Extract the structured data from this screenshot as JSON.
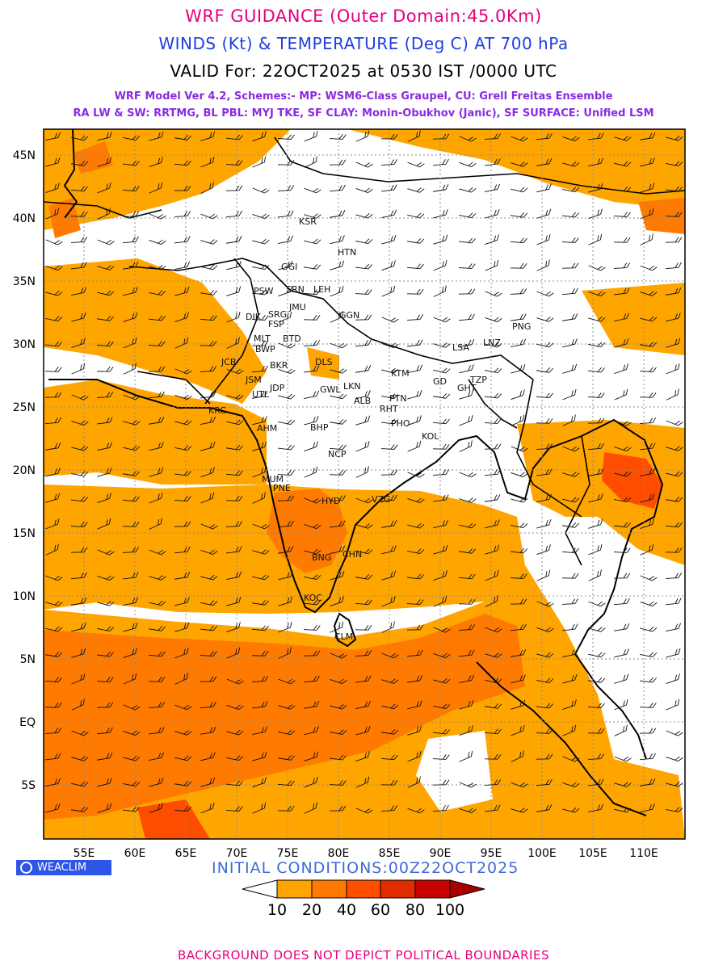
{
  "title_line1": "WRF GUIDANCE (Outer Domain:45.0Km)",
  "title_line2": "WINDS (Kt) & TEMPERATURE (Deg C) AT 700 hPa",
  "title_line3": "VALID For: 22OCT2025 at 0530 IST /0000 UTC",
  "model_info_line1": "WRF Model Ver 4.2, Schemes:- MP: WSM6-Class Graupel, CU: Grell Freitas Ensemble",
  "model_info_line2": "RA LW & SW: RRTMG, BL PBL: MYJ TKE, SF CLAY: Monin-Obukhov (Janic), SF SURFACE: Unified LSM",
  "lat_labels": [
    "45N",
    "40N",
    "35N",
    "30N",
    "25N",
    "20N",
    "15N",
    "10N",
    "5N",
    "EQ",
    "5S"
  ],
  "lon_labels": [
    "55E",
    "60E",
    "65E",
    "70E",
    "75E",
    "80E",
    "85E",
    "90E",
    "95E",
    "100E",
    "105E",
    "110E"
  ],
  "station_labels": [
    "KSR",
    "HTN",
    "GGI",
    "PSW",
    "SRN",
    "LEH",
    "GGN",
    "DIK",
    "SRG",
    "JMU",
    "FSP",
    "MLT",
    "BTD",
    "BWP",
    "DLS",
    "JCB",
    "BKR",
    "JSM",
    "JDP",
    "UTL",
    "GWL",
    "LKN",
    "KTM",
    "GD",
    "TZP",
    "PNG",
    "LNZ",
    "LSA",
    "KRC",
    "PTN",
    "ALB",
    "BHP",
    "RHT",
    "AHM",
    "KOL",
    "PNE",
    "MUM",
    "HYD",
    "VZG",
    "CHN",
    "BNG",
    "KOC",
    "CLM",
    "NCP",
    "PHO",
    "GHT"
  ],
  "legend": {
    "ticks": [
      "10",
      "20",
      "40",
      "60",
      "80",
      "100"
    ],
    "colors": [
      "#ffffff",
      "#ffa500",
      "#ff7a00",
      "#ff4d00",
      "#e12c00",
      "#c90000",
      "#a80000"
    ]
  },
  "logo_text": "WEACLIM",
  "initial_conditions": "INITIAL CONDITIONS:00Z22OCT2025",
  "footer": "BACKGROUND DOES NOT DEPICT POLITICAL BOUNDARIES"
}
